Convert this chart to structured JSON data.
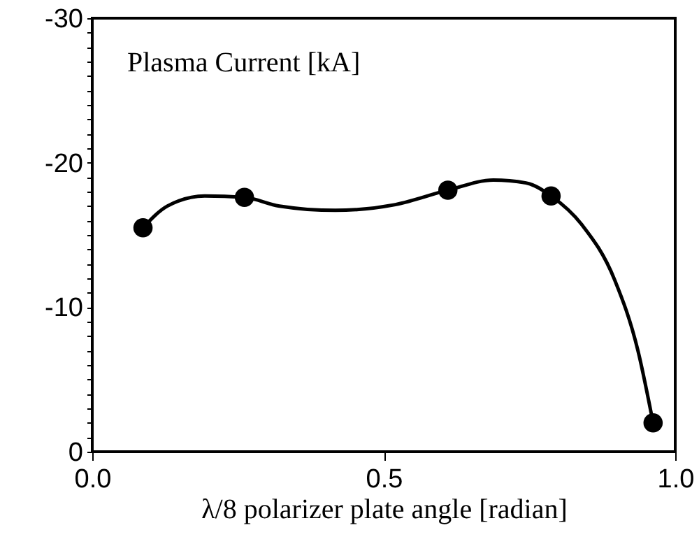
{
  "chart_data": {
    "type": "scatter",
    "ylabel": "Plasma Current [kA]",
    "xlabel": "λ/8 polarizer plate angle [radian]",
    "xlim": [
      0,
      1
    ],
    "xticks": [
      {
        "value": 0,
        "label": "0.0"
      },
      0.5,
      {
        "value": 1,
        "label": "1.0"
      }
    ],
    "ylim": [
      0,
      -30
    ],
    "yticks": [
      {
        "value": -30,
        "label": "-30"
      },
      {
        "value": -29,
        "label": null
      },
      {
        "value": -28,
        "label": null
      },
      {
        "value": -27,
        "label": null
      },
      {
        "value": -26,
        "label": null
      },
      {
        "value": -25,
        "label": null
      },
      {
        "value": -24,
        "label": null
      },
      {
        "value": -23,
        "label": null
      },
      {
        "value": -22,
        "label": null
      },
      {
        "value": -21,
        "label": null
      },
      -20,
      {
        "value": -19,
        "label": null
      },
      {
        "value": -18,
        "label": null
      },
      {
        "value": -17,
        "label": null
      },
      {
        "value": -16,
        "label": null
      },
      {
        "value": -15,
        "label": null
      },
      {
        "value": -14,
        "label": null
      },
      {
        "value": -13,
        "label": null
      },
      {
        "value": -12,
        "label": null
      },
      {
        "value": -11,
        "label": null
      },
      -10,
      {
        "value": -9,
        "label": null
      },
      {
        "value": -8,
        "label": null
      },
      {
        "value": -7,
        "label": null
      },
      {
        "value": -6,
        "label": null
      },
      {
        "value": -5,
        "label": null
      },
      {
        "value": -4,
        "label": null
      },
      {
        "value": -3,
        "label": null
      },
      {
        "value": -2,
        "label": null
      },
      {
        "value": -1,
        "label": null
      },
      0
    ],
    "marker": "circle",
    "series": [
      {
        "type": "line",
        "marker": "none",
        "color": "#000000",
        "x": [
          0.087,
          0.129,
          0.193,
          0.261,
          0.321,
          0.417,
          0.52,
          0.61,
          0.688,
          0.744,
          0.787,
          0.84,
          0.896,
          0.936,
          0.962
        ],
        "values": [
          -15.5,
          -17.0,
          -17.7,
          -17.6,
          -17.0,
          -16.7,
          -17.1,
          -18.1,
          -18.8,
          -18.6,
          -17.7,
          -15.7,
          -11.9,
          -7.0,
          -2.0
        ]
      },
      {
        "type": "scatter",
        "color": "#000000",
        "x": [
          0.087,
          0.261,
          0.61,
          0.787,
          0.962
        ],
        "values": [
          -15.5,
          -17.6,
          -18.1,
          -17.7,
          -2.0
        ]
      }
    ]
  }
}
